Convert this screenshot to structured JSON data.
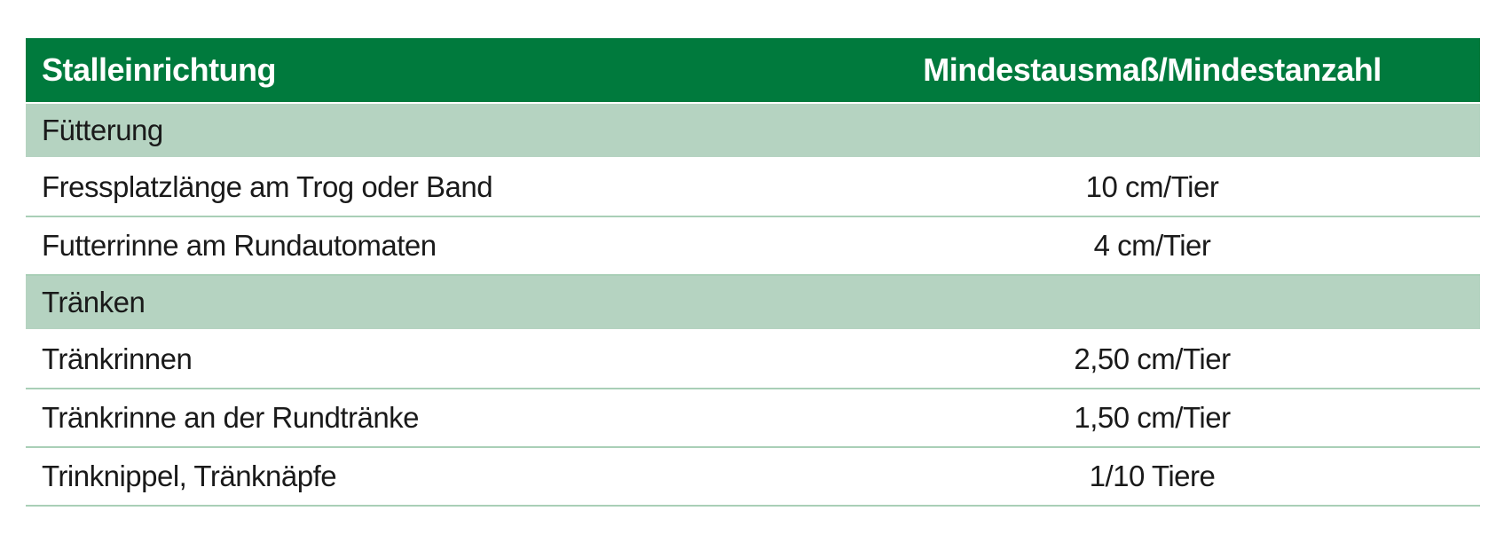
{
  "table": {
    "header": [
      "Stalleinrichtung",
      "Mindestausmaß/Mindestanzahl"
    ],
    "rows": [
      [
        "Fütterung"
      ],
      [
        "Fressplatzlänge am Trog oder Band",
        "10 cm/Tier"
      ],
      [
        "Futterrinne am Rundautomaten",
        "4 cm/Tier"
      ],
      [
        "Tränken"
      ],
      [
        "Tränkrinnen",
        "2,50 cm/Tier"
      ],
      [
        "Tränkrinne an der Rundtränke",
        "1,50 cm/Tier"
      ],
      [
        "Trinknippel, Tränknäpfe",
        "1/10 Tiere"
      ]
    ]
  }
}
